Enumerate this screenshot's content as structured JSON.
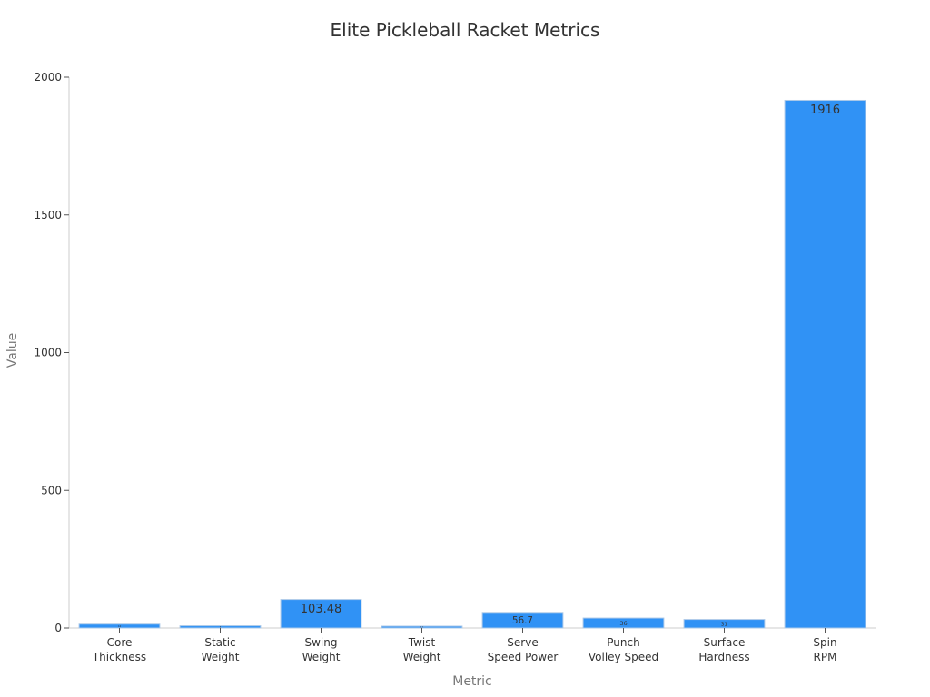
{
  "chart_data": {
    "type": "bar",
    "title": "Elite Pickleball Racket Metrics",
    "xlabel": "Metric",
    "ylabel": "Value",
    "ylim": [
      0,
      2000
    ],
    "yticks": [
      0,
      500,
      1000,
      1500,
      2000
    ],
    "grid": false,
    "legend": "none",
    "bar_color": "#3092f5",
    "categories": [
      [
        "Core",
        "Thickness"
      ],
      [
        "Static",
        "Weight"
      ],
      [
        "Swing",
        "Weight"
      ],
      [
        "Twist",
        "Weight"
      ],
      [
        "Serve",
        "Speed Power"
      ],
      [
        "Punch",
        "Volley Speed"
      ],
      [
        "Surface",
        "Hardness"
      ],
      [
        "Spin",
        "RPM"
      ]
    ],
    "values": [
      14,
      8,
      103.48,
      6.5,
      56.7,
      36,
      31,
      1916
    ],
    "labels": [
      "14",
      "8",
      "103.48",
      "6.5",
      "56.7",
      "36",
      "31",
      "1916"
    ]
  }
}
